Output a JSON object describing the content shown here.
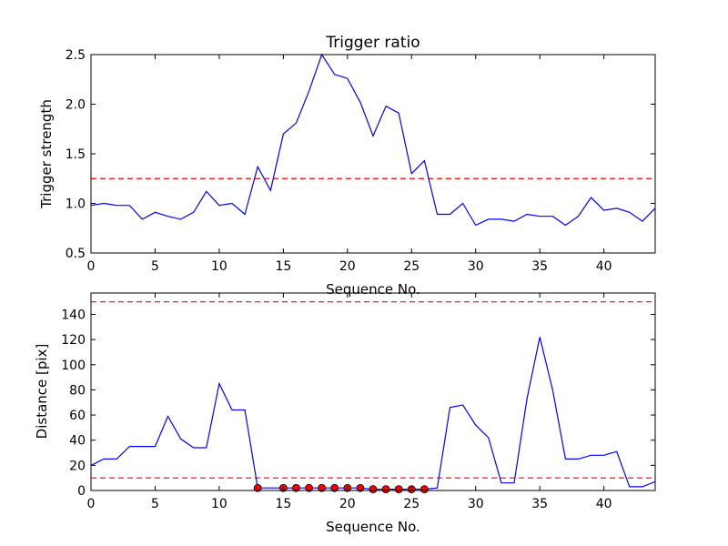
{
  "chart_data": [
    {
      "type": "line",
      "title": "Trigger ratio",
      "xlabel": "Sequence No.",
      "ylabel": "Trigger strength",
      "xlim": [
        0,
        44
      ],
      "ylim": [
        0.5,
        2.5
      ],
      "xticks": [
        "0",
        "5",
        "10",
        "15",
        "20",
        "25",
        "30",
        "35",
        "40"
      ],
      "yticks": [
        "0.5",
        "1.0",
        "1.5",
        "2.0",
        "2.5"
      ],
      "grid": false,
      "series": [
        {
          "color": "#0000ff",
          "x": [
            0,
            1,
            2,
            3,
            4,
            5,
            6,
            7,
            8,
            9,
            10,
            11,
            12,
            13,
            14,
            15,
            16,
            17,
            18,
            19,
            20,
            21,
            22,
            23,
            24,
            25,
            26,
            27,
            28,
            29,
            30,
            31,
            32,
            33,
            34,
            35,
            36,
            37,
            38,
            39,
            40,
            41,
            42,
            43,
            44
          ],
          "y": [
            0.98,
            1.0,
            0.98,
            0.98,
            0.84,
            0.91,
            0.87,
            0.84,
            0.91,
            1.12,
            0.98,
            1.0,
            0.89,
            1.37,
            1.13,
            1.7,
            1.81,
            2.13,
            2.5,
            2.3,
            2.26,
            2.02,
            1.68,
            1.98,
            1.91,
            1.3,
            1.43,
            0.89,
            0.89,
            1.0,
            0.78,
            0.84,
            0.84,
            0.82,
            0.89,
            0.87,
            0.87,
            0.78,
            0.87,
            1.06,
            0.93,
            0.95,
            0.91,
            0.82,
            0.95
          ]
        }
      ],
      "threshold_lines": [
        {
          "y": 1.25,
          "color": "#ff0000",
          "style": "dashed"
        }
      ]
    },
    {
      "type": "line",
      "title": "",
      "xlabel": "Sequence No.",
      "ylabel": "Distance [pix]",
      "xlim": [
        0,
        44
      ],
      "ylim": [
        0,
        157
      ],
      "xticks": [
        "0",
        "5",
        "10",
        "15",
        "20",
        "25",
        "30",
        "35",
        "40"
      ],
      "yticks": [
        "0",
        "20",
        "40",
        "60",
        "80",
        "100",
        "120",
        "140"
      ],
      "grid": false,
      "series": [
        {
          "color": "#0000ff",
          "x": [
            0,
            1,
            2,
            3,
            4,
            5,
            6,
            7,
            8,
            9,
            10,
            11,
            12,
            13,
            14,
            15,
            16,
            17,
            18,
            19,
            20,
            21,
            22,
            23,
            24,
            25,
            26,
            27,
            28,
            29,
            30,
            31,
            32,
            33,
            34,
            35,
            36,
            37,
            38,
            39,
            40,
            41,
            42,
            43,
            44
          ],
          "y": [
            20,
            25,
            25,
            35,
            35,
            35,
            59,
            41,
            34,
            34,
            85,
            64,
            64,
            2,
            2,
            2,
            2,
            2,
            2,
            2,
            2,
            2,
            1,
            1,
            1,
            1,
            1,
            2,
            66,
            68,
            52,
            42,
            6,
            6,
            73,
            122,
            80,
            25,
            25,
            28,
            28,
            31,
            3,
            3,
            7
          ]
        }
      ],
      "markers": {
        "color": "#ff0000",
        "x": [
          13,
          15,
          16,
          17,
          18,
          19,
          20,
          21,
          22,
          23,
          24,
          25,
          26
        ],
        "y": [
          2,
          2,
          2,
          2,
          2,
          2,
          2,
          2,
          1,
          1,
          1,
          1,
          1
        ]
      },
      "threshold_lines": [
        {
          "y": 150,
          "color": "#ff0000",
          "style": "dashed"
        },
        {
          "y": 10,
          "color": "#ff0000",
          "style": "dashed"
        }
      ]
    }
  ]
}
